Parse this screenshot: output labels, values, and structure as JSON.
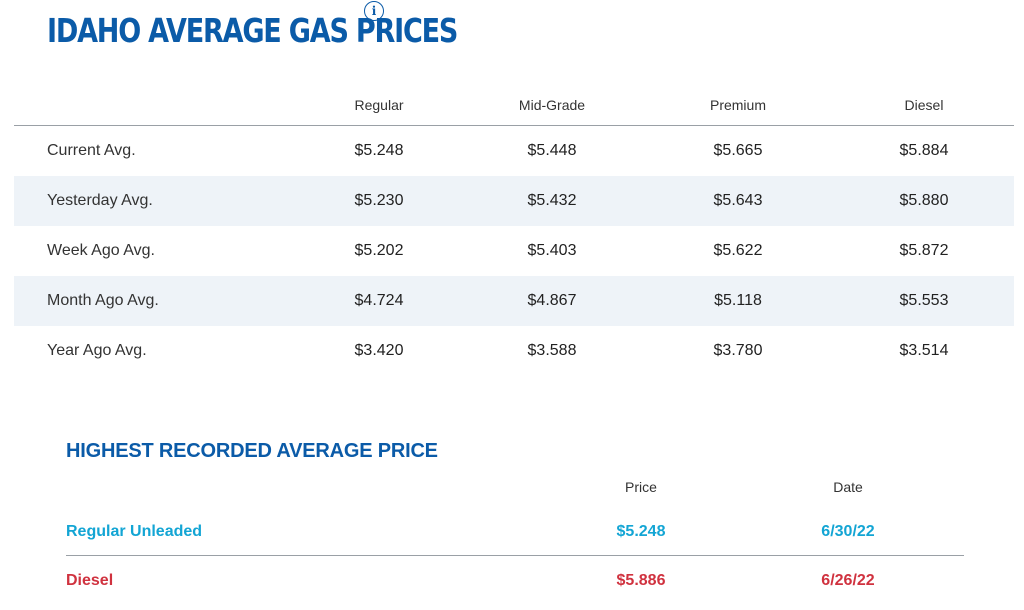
{
  "header": {
    "title": "IDAHO AVERAGE GAS PRICES",
    "info_icon": "info-icon"
  },
  "prices_table": {
    "columns": [
      "",
      "Regular",
      "Mid-Grade",
      "Premium",
      "Diesel"
    ],
    "rows": [
      {
        "label": "Current Avg.",
        "values": [
          "$5.248",
          "$5.448",
          "$5.665",
          "$5.884"
        ]
      },
      {
        "label": "Yesterday Avg.",
        "values": [
          "$5.230",
          "$5.432",
          "$5.643",
          "$5.880"
        ]
      },
      {
        "label": "Week Ago Avg.",
        "values": [
          "$5.202",
          "$5.403",
          "$5.622",
          "$5.872"
        ]
      },
      {
        "label": "Month Ago Avg.",
        "values": [
          "$4.724",
          "$4.867",
          "$5.118",
          "$5.553"
        ]
      },
      {
        "label": "Year Ago Avg.",
        "values": [
          "$3.420",
          "$3.588",
          "$3.780",
          "$3.514"
        ]
      }
    ]
  },
  "highest": {
    "title": "HIGHEST RECORDED AVERAGE PRICE",
    "columns": [
      "Price",
      "Date"
    ],
    "rows": [
      {
        "label": "Regular Unleaded",
        "price": "$5.248",
        "date": "6/30/22",
        "color": "#13a5d4"
      },
      {
        "label": "Diesel",
        "price": "$5.886",
        "date": "6/26/22",
        "color": "#d0323f"
      }
    ]
  }
}
